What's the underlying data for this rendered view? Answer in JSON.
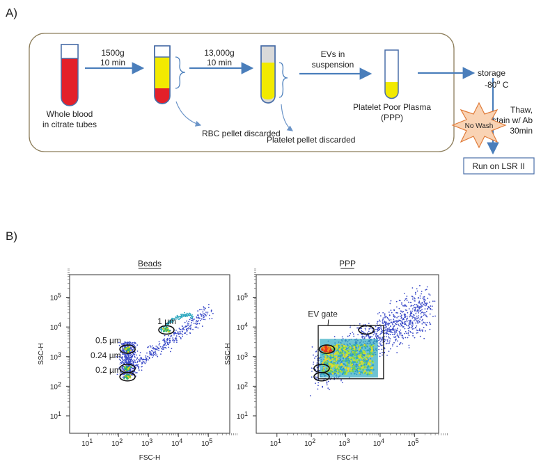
{
  "panel_a": {
    "label": "A)",
    "whole_blood": [
      "Whole blood",
      "in citrate tubes"
    ],
    "spin1": [
      "1500g",
      "10 min"
    ],
    "spin2": [
      "13,000g",
      "10 min"
    ],
    "evs": [
      "EVs in",
      "suspension"
    ],
    "rbc_discard": "RBC pellet discarded",
    "platelet_discard": "Platelet pellet discarded",
    "ppp": [
      "Platelet Poor Plasma",
      "(PPP)"
    ],
    "storage": "storage",
    "temp": {
      "text": "-80",
      "sup": "o",
      "unit": " C"
    },
    "thaw": [
      "Thaw,",
      "stain w/ Ab",
      "30min"
    ],
    "no_wash": "No Wash",
    "run": "Run on LSR II"
  },
  "panel_b": {
    "label": "B)",
    "tick_base": "10",
    "tick_exponents": [
      "1",
      "2",
      "3",
      "4",
      "5"
    ],
    "x_axis": "FSC-H",
    "y_axis": "SSC-H",
    "plots": [
      {
        "title": "Beads",
        "annotations": [
          "1 µm",
          "0.5 µm",
          "0.24 µm",
          "0.2 µm"
        ]
      },
      {
        "title": "PPP",
        "annotations": [
          "EV gate"
        ]
      }
    ]
  }
}
